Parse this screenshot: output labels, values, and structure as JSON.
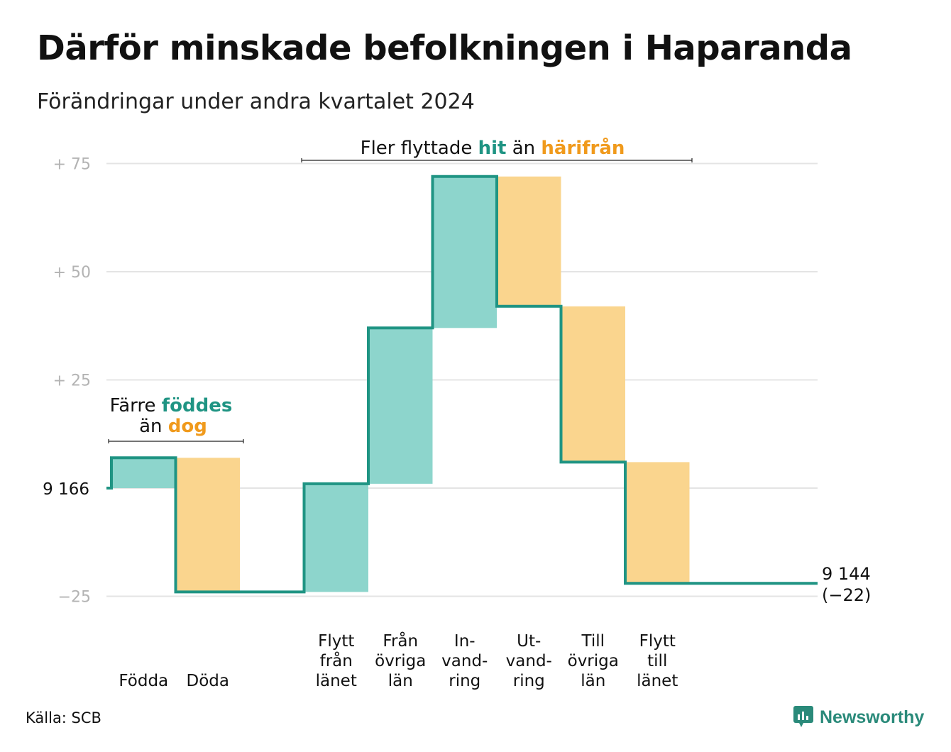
{
  "title": "Därför minskade befolkningen i Haparanda",
  "subtitle": "Förändringar under andra kvartalet 2024",
  "source": "Källa: SCB",
  "brand": "Newsworthy",
  "colors": {
    "in": "#8dd5cc",
    "out": "#fad58e",
    "line": "#1f9483",
    "teal_text": "#1f9483",
    "orange_text": "#f09a1c",
    "grid": "#e4e4e4",
    "tick": "#b3b3b3"
  },
  "chart_data": {
    "type": "waterfall",
    "baseline": 9166,
    "baseline_label": "9 166",
    "y_ticks": [
      {
        "value": 75,
        "label": "+  75"
      },
      {
        "value": 50,
        "label": "+  50"
      },
      {
        "value": 25,
        "label": "+  25"
      },
      {
        "value": 0,
        "label": ""
      },
      {
        "value": -25,
        "label": "−25"
      }
    ],
    "ylim": [
      -25,
      75
    ],
    "steps": [
      {
        "label": [
          "Födda"
        ],
        "change": 7,
        "kind": "in"
      },
      {
        "label": [
          "Döda"
        ],
        "change": -31,
        "kind": "out"
      },
      {
        "label": [
          ""
        ],
        "change": 0,
        "kind": "gap"
      },
      {
        "label": [
          "Flytt",
          "från",
          "länet"
        ],
        "change": 25,
        "kind": "in"
      },
      {
        "label": [
          "Från",
          "övriga",
          "län"
        ],
        "change": 36,
        "kind": "in"
      },
      {
        "label": [
          "In-",
          "vand-",
          "ring"
        ],
        "change": 35,
        "kind": "in"
      },
      {
        "label": [
          "Ut-",
          "vand-",
          "ring"
        ],
        "change": -30,
        "kind": "out"
      },
      {
        "label": [
          "Till",
          "övriga",
          "län"
        ],
        "change": -36,
        "kind": "out"
      },
      {
        "label": [
          "Flytt",
          "till",
          "länet"
        ],
        "change": -28,
        "kind": "out"
      }
    ],
    "end_label": "9 144",
    "end_change_label": "(−22)",
    "annotations": [
      {
        "id": "births",
        "parts": [
          {
            "text": "Färre ",
            "style": "normal"
          },
          {
            "text": "föddes",
            "style": "teal"
          },
          {
            "text": "än ",
            "style": "normal"
          },
          {
            "text": "dog",
            "style": "orange"
          }
        ]
      },
      {
        "id": "moves",
        "parts": [
          {
            "text": "Fler flyttade ",
            "style": "normal"
          },
          {
            "text": "hit",
            "style": "teal"
          },
          {
            "text": " än ",
            "style": "normal"
          },
          {
            "text": "härifrån",
            "style": "orange"
          }
        ]
      }
    ]
  }
}
